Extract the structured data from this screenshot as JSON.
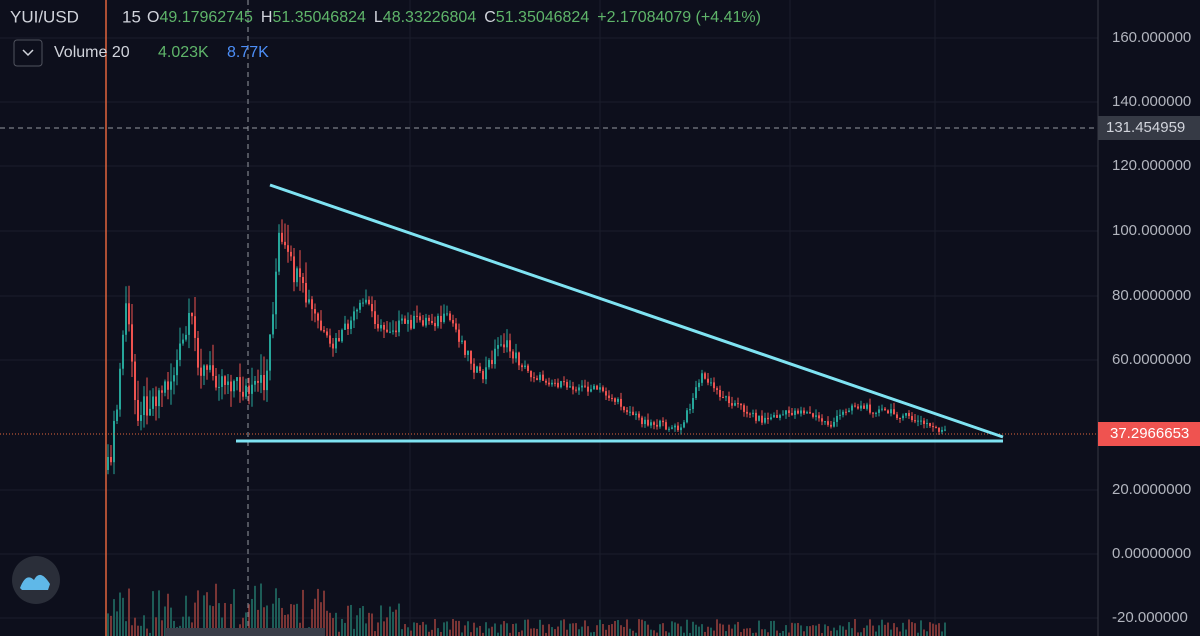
{
  "header": {
    "symbol": "YUI/USD",
    "interval": "15",
    "ohlc": [
      {
        "label": "O",
        "value": "49.17962745"
      },
      {
        "label": "H",
        "value": "51.35046824"
      },
      {
        "label": "L",
        "value": "48.33226804"
      },
      {
        "label": "C",
        "value": "51.35046824"
      }
    ],
    "change": "+2.17084079 (+4.41%)"
  },
  "volume": {
    "label": "Volume 20",
    "value_1": "4.023K",
    "value_2": "8.77K"
  },
  "price_axis": {
    "ticks": [
      "160.000000",
      "140.000000",
      "120.000000",
      "100.000000",
      "80.0000000",
      "60.0000000",
      "20.0000000",
      "0.00000000",
      "-20.000000"
    ]
  },
  "price_labels": {
    "crosshair": "131.454959",
    "last": "37.2966653"
  }
}
